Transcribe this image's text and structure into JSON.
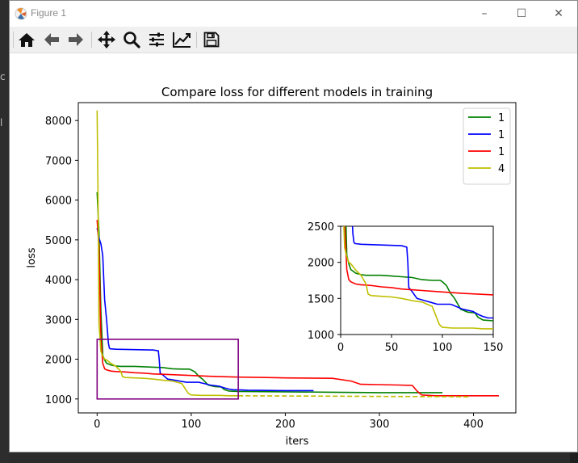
{
  "window": {
    "title": "Figure 1",
    "minimize": "–",
    "maximize": "☐",
    "close": "✕"
  },
  "toolbar": {
    "icons": [
      "home-icon",
      "back-arrow-icon",
      "forward-arrow-icon",
      "pan-icon",
      "zoom-icon",
      "subplots-icon",
      "edit-axis-icon",
      "save-icon"
    ]
  },
  "chart_data": {
    "type": "line",
    "title": "Compare loss for different models in training",
    "xlabel": "iters",
    "ylabel": "loss",
    "xlim": [
      -20,
      445
    ],
    "ylim": [
      650,
      8450
    ],
    "xticks": [
      0,
      100,
      200,
      300,
      400
    ],
    "yticks": [
      1000,
      2000,
      3000,
      4000,
      5000,
      6000,
      7000,
      8000
    ],
    "legend_position": "top-right",
    "series": [
      {
        "name": "1",
        "color": "#008000",
        "x": [
          0,
          2,
          4,
          6,
          8,
          10,
          15,
          20,
          25,
          30,
          35,
          40,
          50,
          60,
          70,
          80,
          90,
          98,
          100,
          104,
          108,
          112,
          118,
          125,
          132,
          135,
          140,
          150,
          200,
          250,
          300,
          320,
          340,
          367
        ],
        "y": [
          6200,
          5200,
          3200,
          2100,
          1980,
          1900,
          1850,
          1830,
          1820,
          1820,
          1820,
          1820,
          1810,
          1800,
          1790,
          1760,
          1750,
          1750,
          1730,
          1680,
          1570,
          1500,
          1350,
          1310,
          1300,
          1240,
          1200,
          1190,
          1180,
          1170,
          1160,
          1160,
          1160,
          1160
        ]
      },
      {
        "name": "1",
        "color": "#0000ff",
        "x": [
          0,
          2,
          4,
          6,
          8,
          10,
          12,
          13,
          14,
          20,
          40,
          60,
          65,
          66,
          67,
          70,
          75,
          80,
          90,
          95,
          100,
          108,
          110,
          120,
          130,
          135,
          140,
          145,
          150,
          160,
          180,
          200,
          230
        ],
        "y": [
          5300,
          5050,
          4900,
          4600,
          3500,
          3000,
          2400,
          2280,
          2260,
          2250,
          2240,
          2230,
          2210,
          2000,
          1650,
          1600,
          1500,
          1480,
          1440,
          1420,
          1420,
          1420,
          1410,
          1350,
          1320,
          1280,
          1250,
          1230,
          1230,
          1220,
          1215,
          1210,
          1210
        ]
      },
      {
        "name": "1",
        "color": "#ff0000",
        "x": [
          0,
          2,
          4,
          6,
          8,
          10,
          15,
          20,
          30,
          40,
          50,
          60,
          70,
          80,
          90,
          100,
          110,
          120,
          150,
          180,
          200,
          250,
          270,
          280,
          300,
          320,
          335,
          340,
          345,
          360,
          380,
          400,
          427
        ],
        "y": [
          5500,
          4800,
          2500,
          1900,
          1760,
          1730,
          1700,
          1690,
          1680,
          1660,
          1650,
          1630,
          1620,
          1610,
          1600,
          1590,
          1580,
          1570,
          1550,
          1540,
          1530,
          1520,
          1450,
          1370,
          1360,
          1350,
          1340,
          1200,
          1100,
          1080,
          1080,
          1080,
          1080
        ]
      },
      {
        "name": "4",
        "color": "#bfbf00",
        "x": [
          0,
          1,
          2,
          4,
          6,
          8,
          10,
          15,
          20,
          25,
          27,
          30,
          40,
          50,
          60,
          70,
          80,
          85,
          90,
          95,
          97,
          100,
          110,
          120,
          130,
          140,
          150
        ],
        "y": [
          8250,
          6000,
          2900,
          2200,
          2080,
          2000,
          1980,
          1890,
          1820,
          1700,
          1560,
          1540,
          1530,
          1520,
          1500,
          1470,
          1450,
          1420,
          1390,
          1210,
          1140,
          1100,
          1090,
          1090,
          1090,
          1080,
          1080
        ]
      },
      {
        "name": "",
        "color": "#bfbf00",
        "dashed": true,
        "x": [
          150,
          200,
          250,
          300,
          350,
          395
        ],
        "y": [
          1080,
          1075,
          1070,
          1065,
          1060,
          1055
        ]
      }
    ],
    "zoom_box": {
      "x": [
        0,
        150
      ],
      "y": [
        1000,
        2500
      ],
      "color": "#800080"
    },
    "inset": {
      "xlim": [
        0,
        150
      ],
      "ylim": [
        1000,
        2500
      ],
      "xticks": [
        0,
        50,
        100,
        150
      ],
      "yticks": [
        1000,
        1500,
        2000,
        2500
      ]
    }
  }
}
